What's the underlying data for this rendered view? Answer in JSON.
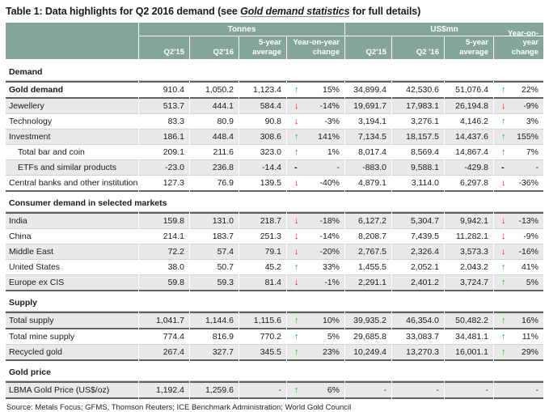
{
  "title": {
    "prefix": "Table 1: Data highlights for Q2 2016 demand (see ",
    "link": "Gold demand statistics",
    "suffix": " for full details)"
  },
  "glyphs": {
    "up": "↑",
    "down": "↓",
    "dash": "-"
  },
  "colors": {
    "header_bg": "#83A699",
    "row_alt": "#E9E9E9",
    "arrow_up": "#2E9E44",
    "arrow_down": "#CE2029"
  },
  "header": {
    "groups": [
      {
        "label": "Tonnes",
        "columns": [
          "Q2'15",
          "Q2'16",
          "5-year average",
          "Year-on-year change"
        ]
      },
      {
        "label": "US$mn",
        "columns": [
          "Q2'15",
          "Q2 '16",
          "5-year average",
          "Year-on-year change"
        ]
      }
    ]
  },
  "sections": [
    {
      "label": "Demand",
      "rows": [
        {
          "label": "Gold demand",
          "bold": true,
          "shade": false,
          "indent": false,
          "heavy": true,
          "tonnes": [
            "910.4",
            "1,050.2",
            "1,123.4"
          ],
          "tonnes_change": {
            "dir": "up",
            "value": "15%"
          },
          "usd": [
            "34,899.4",
            "42,530.6",
            "51,076.4"
          ],
          "usd_change": {
            "dir": "up",
            "value": "22%"
          }
        },
        {
          "label": "Jewellery",
          "bold": false,
          "shade": true,
          "indent": false,
          "heavy": false,
          "tonnes": [
            "513.7",
            "444.1",
            "584.4"
          ],
          "tonnes_change": {
            "dir": "down",
            "value": "-14%"
          },
          "usd": [
            "19,691.7",
            "17,983.1",
            "26,194.8"
          ],
          "usd_change": {
            "dir": "down",
            "value": "-9%"
          }
        },
        {
          "label": "Technology",
          "bold": false,
          "shade": false,
          "indent": false,
          "heavy": false,
          "tonnes": [
            "83.3",
            "80.9",
            "90.8"
          ],
          "tonnes_change": {
            "dir": "down",
            "value": "-3%"
          },
          "usd": [
            "3,194.1",
            "3,276.1",
            "4,146.2"
          ],
          "usd_change": {
            "dir": "up",
            "value": "3%"
          }
        },
        {
          "label": "Investment",
          "bold": false,
          "shade": true,
          "indent": false,
          "heavy": false,
          "tonnes": [
            "186.1",
            "448.4",
            "308.6"
          ],
          "tonnes_change": {
            "dir": "up",
            "value": "141%"
          },
          "usd": [
            "7,134.5",
            "18,157.5",
            "14,437.6"
          ],
          "usd_change": {
            "dir": "up",
            "value": "155%"
          }
        },
        {
          "label": "Total bar and coin",
          "bold": false,
          "shade": false,
          "indent": true,
          "heavy": false,
          "tonnes": [
            "209.1",
            "211.6",
            "323.0"
          ],
          "tonnes_change": {
            "dir": "up",
            "value": "1%"
          },
          "usd": [
            "8,017.4",
            "8,569.4",
            "14,867.4"
          ],
          "usd_change": {
            "dir": "up",
            "value": "7%"
          }
        },
        {
          "label": "ETFs and similar products",
          "bold": false,
          "shade": true,
          "indent": true,
          "heavy": false,
          "tonnes": [
            "-23.0",
            "236.8",
            "-14.4"
          ],
          "tonnes_change": {
            "dir": "dash",
            "value": "-"
          },
          "usd": [
            "-883.0",
            "9,588.1",
            "-429.8"
          ],
          "usd_change": {
            "dir": "dash",
            "value": "-"
          }
        },
        {
          "label": "Central banks and other institutions",
          "bold": false,
          "shade": false,
          "indent": false,
          "heavy": false,
          "tonnes": [
            "127.3",
            "76.9",
            "139.5"
          ],
          "tonnes_change": {
            "dir": "down",
            "value": "-40%"
          },
          "usd": [
            "4,879.1",
            "3,114.0",
            "6,297.8"
          ],
          "usd_change": {
            "dir": "down",
            "value": "-36%"
          }
        }
      ]
    },
    {
      "label": "Consumer demand in selected markets",
      "rows": [
        {
          "label": "India",
          "bold": false,
          "shade": true,
          "indent": false,
          "heavy": false,
          "tonnes": [
            "159.8",
            "131.0",
            "218.7"
          ],
          "tonnes_change": {
            "dir": "down",
            "value": "-18%"
          },
          "usd": [
            "6,127.2",
            "5,304.7",
            "9,942.1"
          ],
          "usd_change": {
            "dir": "down",
            "value": "-13%"
          }
        },
        {
          "label": "China",
          "bold": false,
          "shade": false,
          "indent": false,
          "heavy": false,
          "tonnes": [
            "214.1",
            "183.7",
            "251.3"
          ],
          "tonnes_change": {
            "dir": "down",
            "value": "-14%"
          },
          "usd": [
            "8,208.7",
            "7,439.5",
            "11,282.1"
          ],
          "usd_change": {
            "dir": "down",
            "value": "-9%"
          }
        },
        {
          "label": "Middle East",
          "bold": false,
          "shade": true,
          "indent": false,
          "heavy": false,
          "tonnes": [
            "72.2",
            "57.4",
            "79.1"
          ],
          "tonnes_change": {
            "dir": "down",
            "value": "-20%"
          },
          "usd": [
            "2,767.5",
            "2,326.4",
            "3,573.3"
          ],
          "usd_change": {
            "dir": "down",
            "value": "-16%"
          }
        },
        {
          "label": "United States",
          "bold": false,
          "shade": false,
          "indent": false,
          "heavy": false,
          "tonnes": [
            "38.0",
            "50.7",
            "45.2"
          ],
          "tonnes_change": {
            "dir": "up",
            "value": "33%"
          },
          "usd": [
            "1,455.5",
            "2,052.1",
            "2,043.2"
          ],
          "usd_change": {
            "dir": "up",
            "value": "41%"
          }
        },
        {
          "label": "Europe ex CIS",
          "bold": false,
          "shade": true,
          "indent": false,
          "heavy": false,
          "tonnes": [
            "59.8",
            "59.3",
            "81.4"
          ],
          "tonnes_change": {
            "dir": "down",
            "value": "-1%"
          },
          "usd": [
            "2,291.1",
            "2,401.2",
            "3,724.7"
          ],
          "usd_change": {
            "dir": "up",
            "value": "5%"
          }
        }
      ]
    },
    {
      "label": "Supply",
      "rows": [
        {
          "label": "Total supply",
          "bold": false,
          "shade": true,
          "indent": false,
          "heavy": true,
          "tonnes": [
            "1,041.7",
            "1,144.6",
            "1,115.6"
          ],
          "tonnes_change": {
            "dir": "up",
            "value": "10%"
          },
          "usd": [
            "39,935.2",
            "46,354.0",
            "50,482.2"
          ],
          "usd_change": {
            "dir": "up",
            "value": "16%"
          }
        },
        {
          "label": "Total mine supply",
          "bold": false,
          "shade": false,
          "indent": false,
          "heavy": false,
          "tonnes": [
            "774.4",
            "816.9",
            "770.2"
          ],
          "tonnes_change": {
            "dir": "up",
            "value": "5%"
          },
          "usd": [
            "29,685.8",
            "33,083.7",
            "34,481.1"
          ],
          "usd_change": {
            "dir": "up",
            "value": "11%"
          }
        },
        {
          "label": "Recycled gold",
          "bold": false,
          "shade": true,
          "indent": false,
          "heavy": false,
          "tonnes": [
            "267.4",
            "327.7",
            "345.5"
          ],
          "tonnes_change": {
            "dir": "up",
            "value": "23%"
          },
          "usd": [
            "10,249.4",
            "13,270.3",
            "16,001.1"
          ],
          "usd_change": {
            "dir": "up",
            "value": "29%"
          }
        }
      ]
    },
    {
      "label": "Gold price",
      "rows": [
        {
          "label": "LBMA Gold Price (US$/oz)",
          "bold": false,
          "shade": true,
          "indent": false,
          "heavy": true,
          "tonnes": [
            "1,192.4",
            "1,259.6",
            "-"
          ],
          "tonnes_change": {
            "dir": "up",
            "value": "6%"
          },
          "usd": [
            "-",
            "-",
            "-"
          ],
          "usd_change": {
            "dir": "none",
            "value": "-"
          }
        }
      ]
    }
  ],
  "source": "Source: Metals Focus; GFMS, Thomson Reuters; ICE Benchmark Administration; World Gold Council"
}
